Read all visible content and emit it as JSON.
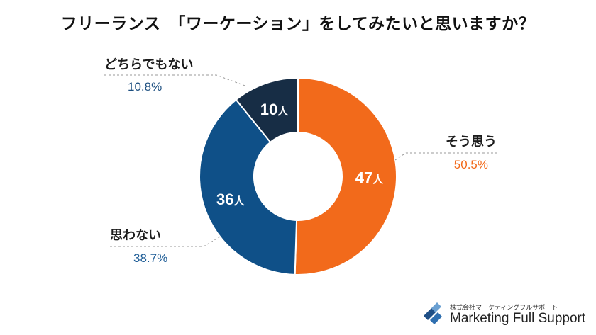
{
  "title": "フリーランス　「ワーケーション」をしてみたいと思いますか？",
  "chart_data": {
    "type": "pie",
    "title": "フリーランス　「ワーケーション」をしてみたいと思いますか？",
    "count_unit": "人",
    "slices": [
      {
        "label": "そう思う",
        "count": 47,
        "percent": "50.5%",
        "value": 50.5,
        "color": "#f26a1b",
        "text_color": "#f26a1b"
      },
      {
        "label": "思わない",
        "count": 36,
        "percent": "38.7%",
        "value": 38.7,
        "color": "#0f5088",
        "text_color": "#1d5c96"
      },
      {
        "label": "どちらでもない",
        "count": 10,
        "percent": "10.8%",
        "value": 10.8,
        "color": "#172d45",
        "text_color": "#1d4f80"
      }
    ]
  },
  "logo": {
    "sub": "株式会社マーケティングフルサポート",
    "main": "Marketing Full Support"
  }
}
